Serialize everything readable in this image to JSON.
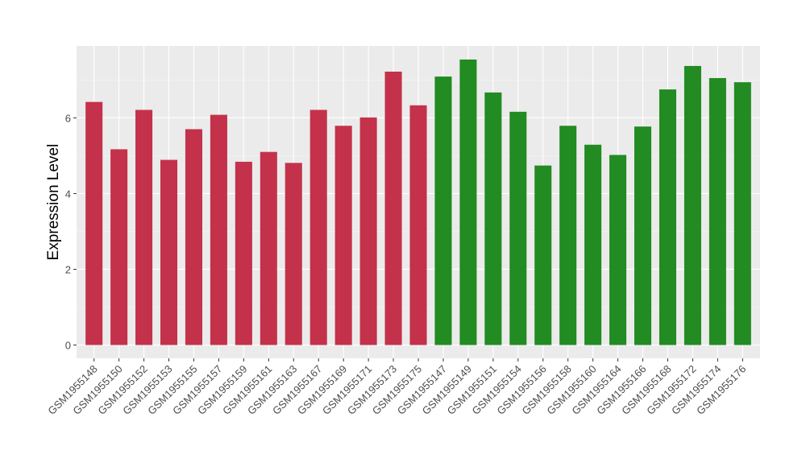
{
  "chart_data": {
    "type": "bar",
    "ylabel": "Expression Level",
    "xlabel": "",
    "ylim": [
      -0.35,
      7.9
    ],
    "yticks": [
      0,
      2,
      4,
      6
    ],
    "grid": true,
    "legend": "none",
    "categories": [
      "GSM1955148",
      "GSM1955150",
      "GSM1955152",
      "GSM1955153",
      "GSM1955155",
      "GSM1955157",
      "GSM1955159",
      "GSM1955161",
      "GSM1955163",
      "GSM1955167",
      "GSM1955169",
      "GSM1955171",
      "GSM1955173",
      "GSM1955175",
      "GSM1955147",
      "GSM1955149",
      "GSM1955151",
      "GSM1955154",
      "GSM1955156",
      "GSM1955158",
      "GSM1955160",
      "GSM1955164",
      "GSM1955166",
      "GSM1955168",
      "GSM1955172",
      "GSM1955174",
      "GSM1955176"
    ],
    "values": [
      6.42,
      5.17,
      6.21,
      4.89,
      5.7,
      6.08,
      4.84,
      5.1,
      4.81,
      6.21,
      5.79,
      6.01,
      7.22,
      6.33,
      7.09,
      7.54,
      6.67,
      6.16,
      4.74,
      5.79,
      5.29,
      5.02,
      5.77,
      6.75,
      7.37,
      7.05,
      6.94
    ],
    "groups": [
      0,
      0,
      0,
      0,
      0,
      0,
      0,
      0,
      0,
      0,
      0,
      0,
      0,
      0,
      1,
      1,
      1,
      1,
      1,
      1,
      1,
      1,
      1,
      1,
      1,
      1,
      1
    ],
    "colors": {
      "group0": "#c4314b",
      "group1": "#228b22",
      "panel_background": "#ebebeb",
      "grid_major": "#ffffff",
      "axis_text": "#4d4d4d",
      "title_text": "#000000"
    }
  }
}
